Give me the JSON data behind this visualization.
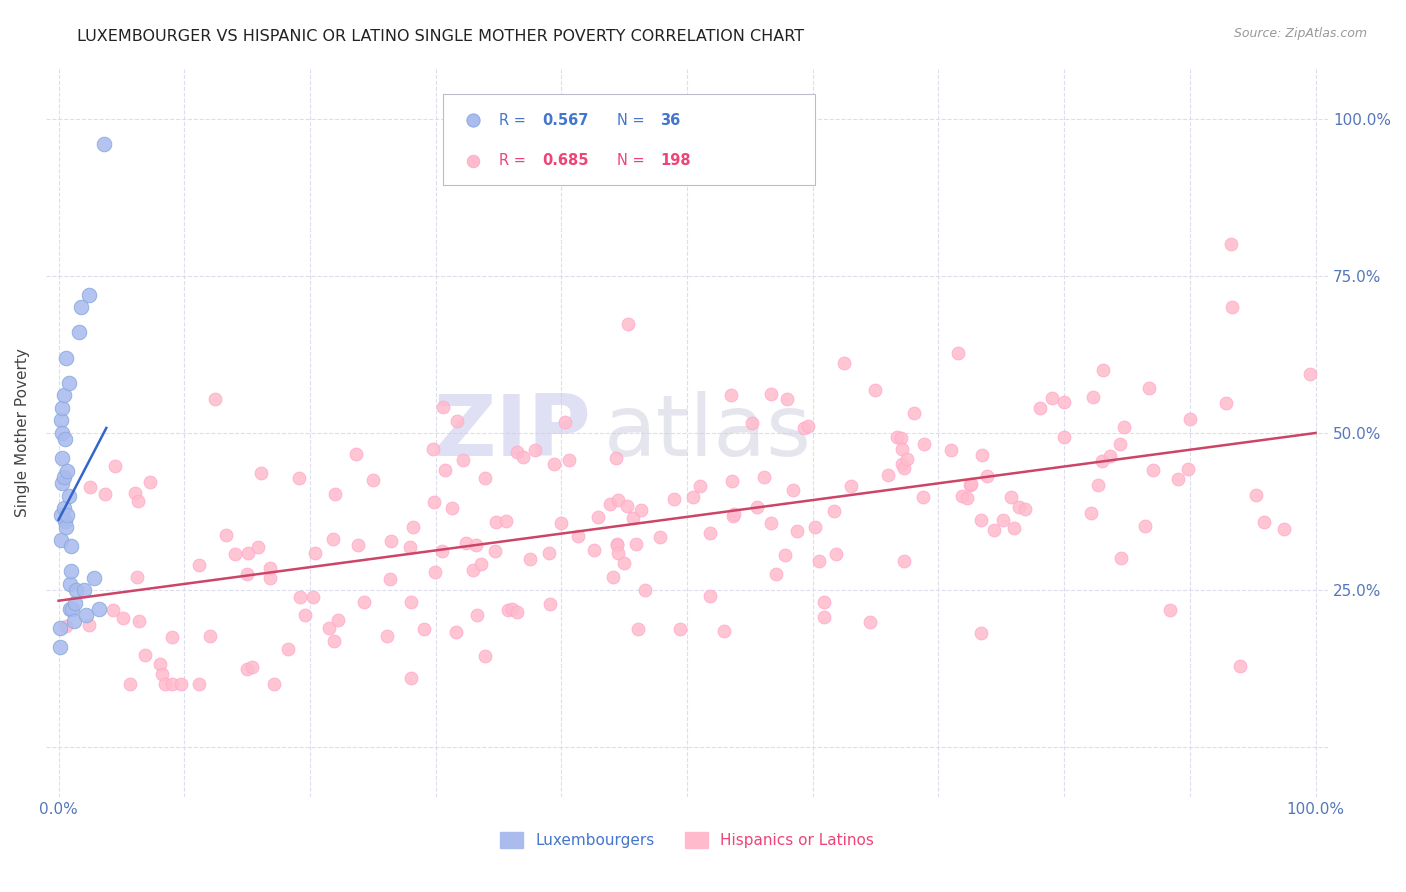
{
  "title": "LUXEMBOURGER VS HISPANIC OR LATINO SINGLE MOTHER POVERTY CORRELATION CHART",
  "source_text": "Source: ZipAtlas.com",
  "ylabel": "Single Mother Poverty",
  "r1": "0.567",
  "n1": "36",
  "r2": "0.685",
  "n2": "198",
  "label1": "Luxembourgers",
  "label2": "Hispanics or Latinos",
  "color_blue_dot": "#AABBEE",
  "color_blue_edge": "#88AADD",
  "color_pink_dot": "#FFBBCC",
  "color_pink_edge": "#FFAACC",
  "color_blue_line": "#3366CC",
  "color_pink_line": "#CC4466",
  "color_blue_text": "#4477CC",
  "color_pink_text": "#EE4477",
  "color_axis_text": "#5577BB",
  "color_grid": "#DDDDEE",
  "watermark_zip": "ZIP",
  "watermark_atlas": "atlas",
  "watermark_color_zip": "#CCCCEE",
  "watermark_color_atlas": "#CCCCDD",
  "xlim": [
    -0.01,
    1.01
  ],
  "ylim": [
    -0.08,
    1.08
  ],
  "ytick_right": [
    0.25,
    0.5,
    0.75,
    1.0
  ],
  "ytick_right_labels": [
    "25.0%",
    "50.0%",
    "75.0%",
    "100.0%"
  ],
  "blue_x": [
    0.001,
    0.001,
    0.002,
    0.002,
    0.002,
    0.003,
    0.003,
    0.003,
    0.003,
    0.004,
    0.004,
    0.004,
    0.005,
    0.005,
    0.006,
    0.006,
    0.007,
    0.007,
    0.008,
    0.008,
    0.009,
    0.009,
    0.01,
    0.01,
    0.011,
    0.012,
    0.013,
    0.014,
    0.016,
    0.018,
    0.02,
    0.022,
    0.024,
    0.028,
    0.032,
    0.036
  ],
  "blue_y": [
    0.19,
    0.16,
    0.37,
    0.33,
    0.52,
    0.42,
    0.46,
    0.5,
    0.54,
    0.38,
    0.43,
    0.56,
    0.36,
    0.49,
    0.35,
    0.62,
    0.37,
    0.44,
    0.4,
    0.58,
    0.22,
    0.26,
    0.28,
    0.32,
    0.22,
    0.2,
    0.23,
    0.25,
    0.66,
    0.7,
    0.25,
    0.21,
    0.72,
    0.27,
    0.22,
    0.96
  ]
}
